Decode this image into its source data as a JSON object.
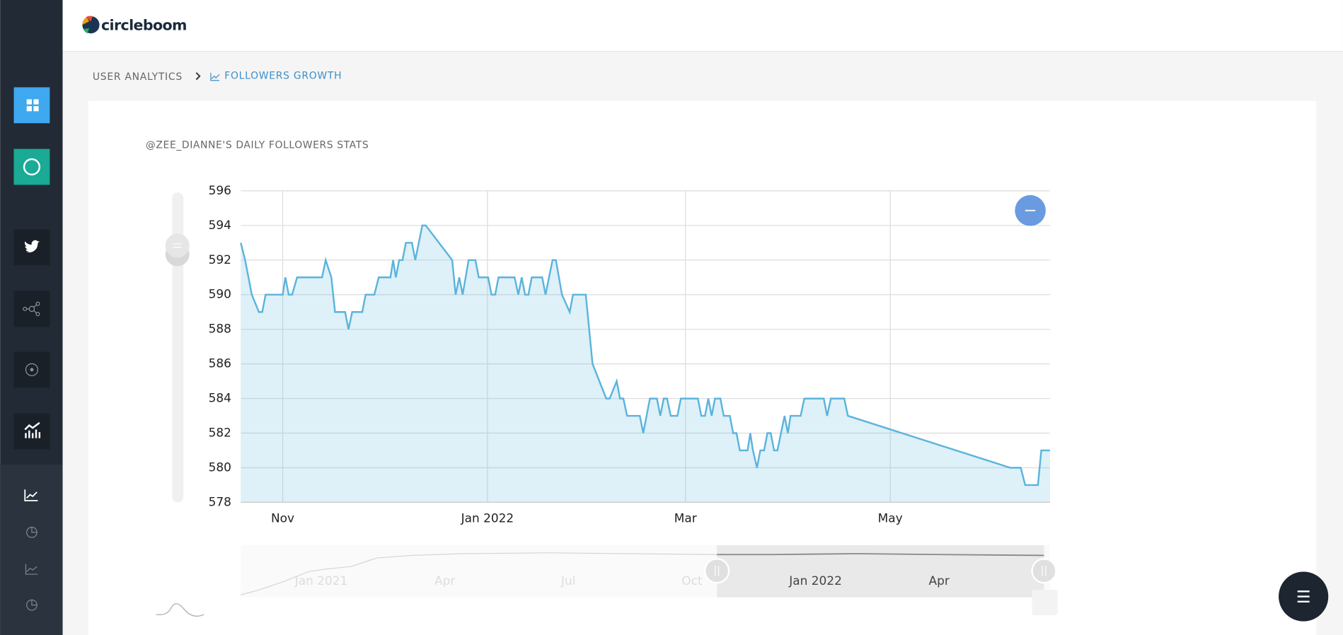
{
  "header": {
    "logo": "circleboom"
  },
  "breadcrumb": {
    "parent": "USER ANALYTICS",
    "current": "FOLLOWERS GROWTH"
  },
  "chart_data": {
    "type": "line",
    "title": "@ZEE_DIANNE'S DAILY FOLLOWERS STATS",
    "color": "#5ab4dc",
    "grid": true,
    "x": [
      -12.5,
      -11.2,
      -9.2,
      -7.1,
      -6.1,
      -5.1,
      -1.0,
      0,
      0.8,
      1.8,
      2.8,
      4.3,
      11.7,
      12.8,
      14.5,
      15.6,
      18.6,
      19.6,
      20.7,
      23.7,
      24.7,
      27.3,
      28.6,
      32.1,
      32.9,
      33.7,
      34.7,
      35.7,
      36.7,
      38.5,
      39.5,
      41.6,
      42.6,
      50.5,
      51.5,
      52.6,
      53.6,
      55.4,
      57.4,
      58.4,
      61.2,
      62.2,
      63.3,
      64.3,
      69.1,
      70.2,
      71.2,
      72.2,
      73.2,
      74.2,
      77.3,
      78.3,
      80.4,
      81.4,
      83.2,
      85.5,
      86.5,
      90.3,
      92.3,
      96.4,
      97.4,
      99.5,
      100.5,
      101.5,
      102.6,
      106.4,
      107.4,
      109.4,
      111.5,
      112.5,
      113.5,
      114.5,
      115.6,
      117.6,
      118.6,
      123.7,
      124.7,
      125.8,
      126.8,
      127.8,
      128.8,
      130.4,
      131.4,
      133.2,
      134.2,
      135.2,
      136.2,
      138.5,
      139.3,
      140.1,
      141.3,
      142.3,
      143.4,
      144.4,
      145.4,
      146.4,
      147.4,
      149.5,
      150.5,
      151.3,
      154.3,
      155.4,
      161.2,
      162.2,
      163.3,
      167.3,
      168.4,
      216.8,
      219.9,
      221.2,
      225.0,
      226.0,
      228.6
    ],
    "values": [
      593,
      592,
      590,
      589,
      589,
      590,
      590,
      590,
      591,
      590,
      590,
      591,
      591,
      592,
      591,
      589,
      589,
      588,
      589,
      589,
      590,
      590,
      591,
      591,
      592,
      591,
      592,
      592,
      593,
      593,
      592,
      594,
      594,
      592,
      590,
      591,
      590,
      592,
      592,
      591,
      591,
      590,
      590,
      591,
      591,
      590,
      591,
      590,
      590,
      591,
      591,
      590,
      592,
      592,
      590,
      589,
      590,
      590,
      586,
      584,
      584,
      585,
      584,
      584,
      583,
      583,
      582,
      584,
      584,
      583,
      584,
      584,
      583,
      583,
      584,
      584,
      583,
      583,
      584,
      583,
      584,
      584,
      583,
      583,
      582,
      582,
      581,
      581,
      582,
      581,
      580,
      581,
      581,
      582,
      582,
      581,
      581,
      583,
      582,
      583,
      583,
      584,
      584,
      583,
      584,
      584,
      583,
      580,
      580,
      579,
      579,
      581,
      581
    ],
    "xlim": [
      -12.5,
      228.6
    ],
    "xticks": [
      {
        "value": 0,
        "label": "Nov"
      },
      {
        "value": 61,
        "label": "Jan 2022"
      },
      {
        "value": 120,
        "label": "Mar"
      },
      {
        "value": 181,
        "label": "May"
      }
    ],
    "ylim": [
      578,
      596
    ],
    "yticks": [
      578,
      580,
      582,
      584,
      586,
      588,
      590,
      592,
      594,
      596
    ]
  },
  "navigator": {
    "labels": [
      "Jan 2021",
      "Apr",
      "Jul",
      "Oct",
      "Jan 2022",
      "Apr"
    ]
  }
}
